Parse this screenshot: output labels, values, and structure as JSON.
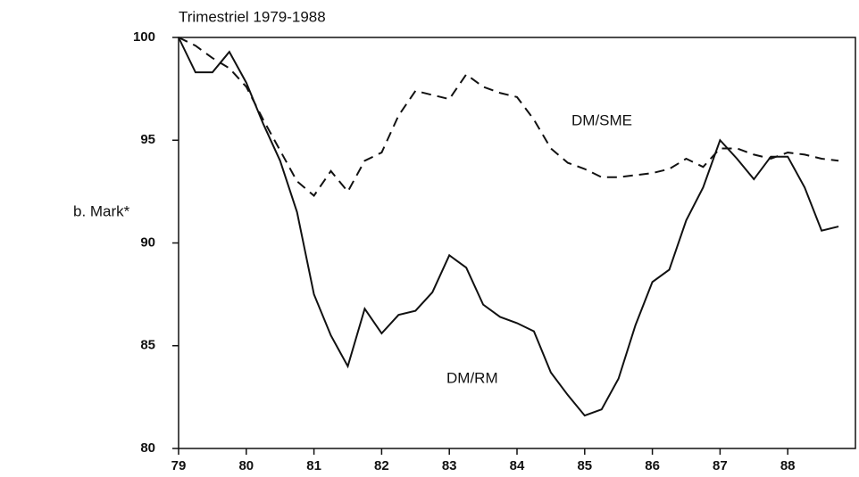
{
  "chart_data": {
    "type": "line",
    "title": "Trimestriel 1979-1988",
    "ylabel": "b. Mark*",
    "annotations": [
      "DM/SME",
      "DM/RM"
    ],
    "x": [
      79,
      79.25,
      79.5,
      79.75,
      80,
      80.25,
      80.5,
      80.75,
      81,
      81.25,
      81.5,
      81.75,
      82,
      82.25,
      82.5,
      82.75,
      83,
      83.25,
      83.5,
      83.75,
      84,
      84.25,
      84.5,
      84.75,
      85,
      85.25,
      85.5,
      85.75,
      86,
      86.25,
      86.5,
      86.75,
      87,
      87.25,
      87.5,
      87.75,
      88,
      88.25,
      88.5,
      88.75
    ],
    "series": [
      {
        "name": "DM/RM",
        "color": "#111111",
        "dash": false,
        "values": [
          100,
          98.3,
          98.3,
          99.3,
          97.8,
          95.8,
          94,
          91.5,
          87.5,
          85.5,
          84,
          86.8,
          85.6,
          86.5,
          86.7,
          87.6,
          89.4,
          88.8,
          87,
          86.4,
          86.1,
          85.7,
          83.7,
          82.6,
          81.6,
          81.9,
          83.4,
          86,
          88.1,
          88.7,
          91.1,
          92.7,
          95,
          94.1,
          93.1,
          94.2,
          94.2,
          92.7,
          90.6,
          90.8
        ]
      },
      {
        "name": "DM/SME",
        "color": "#111111",
        "dash": true,
        "values": [
          100,
          99.6,
          99,
          98.5,
          97.6,
          96,
          94.5,
          93,
          92.3,
          93.5,
          92.5,
          94,
          94.4,
          96.2,
          97.4,
          97.2,
          97,
          98.2,
          97.6,
          97.3,
          97.1,
          96,
          94.6,
          93.9,
          93.6,
          93.2,
          93.2,
          93.3,
          93.4,
          93.6,
          94.1,
          93.7,
          94.6,
          94.6,
          94.3,
          94.1,
          94.4,
          94.3,
          94.1,
          94
        ]
      }
    ],
    "xlim": [
      79,
      89
    ],
    "xticks": [
      79,
      80,
      81,
      82,
      83,
      84,
      85,
      86,
      87,
      88
    ],
    "ylim": [
      80,
      100
    ],
    "yticks": [
      80,
      85,
      90,
      95,
      100
    ],
    "grid": false
  }
}
